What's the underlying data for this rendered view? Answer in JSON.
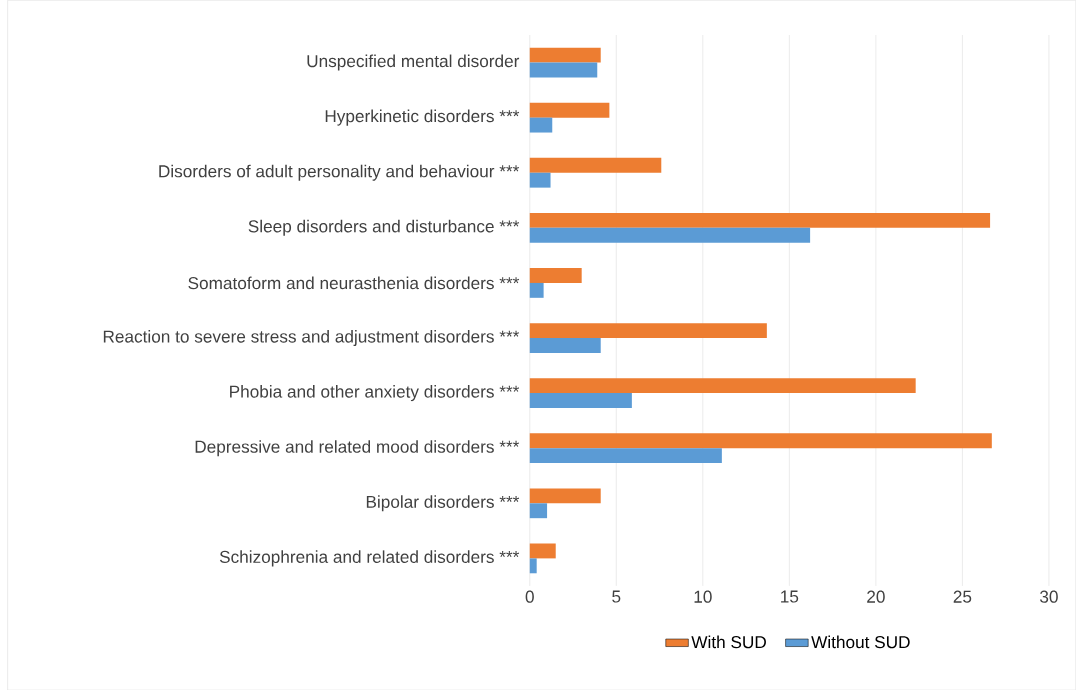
{
  "chart_data": {
    "type": "bar",
    "orientation": "horizontal",
    "categories": [
      "Unspecified mental disorder",
      "Hyperkinetic disorders ***",
      "Disorders of adult personality and behaviour ***",
      "Sleep disorders and disturbance ***",
      "Somatoform and neurasthenia disorders ***",
      "Reaction to severe stress and adjustment disorders ***",
      "Phobia and other anxiety disorders ***",
      "Depressive and related mood disorders ***",
      "Bipolar disorders ***",
      "Schizophrenia and related disorders ***"
    ],
    "series": [
      {
        "name": "With SUD",
        "color": "#ed7d31",
        "values": [
          4.1,
          4.6,
          7.6,
          26.6,
          3.0,
          13.7,
          22.3,
          26.7,
          4.1,
          1.5
        ]
      },
      {
        "name": "Without  SUD",
        "color": "#5b9bd5",
        "values": [
          3.9,
          1.3,
          1.2,
          16.2,
          0.8,
          4.1,
          5.9,
          11.1,
          1.0,
          0.4
        ]
      }
    ],
    "xlim": [
      0,
      30
    ],
    "xticks": [
      0,
      5,
      10,
      15,
      20,
      25,
      30
    ],
    "grid": "x",
    "legend": "bottom"
  }
}
